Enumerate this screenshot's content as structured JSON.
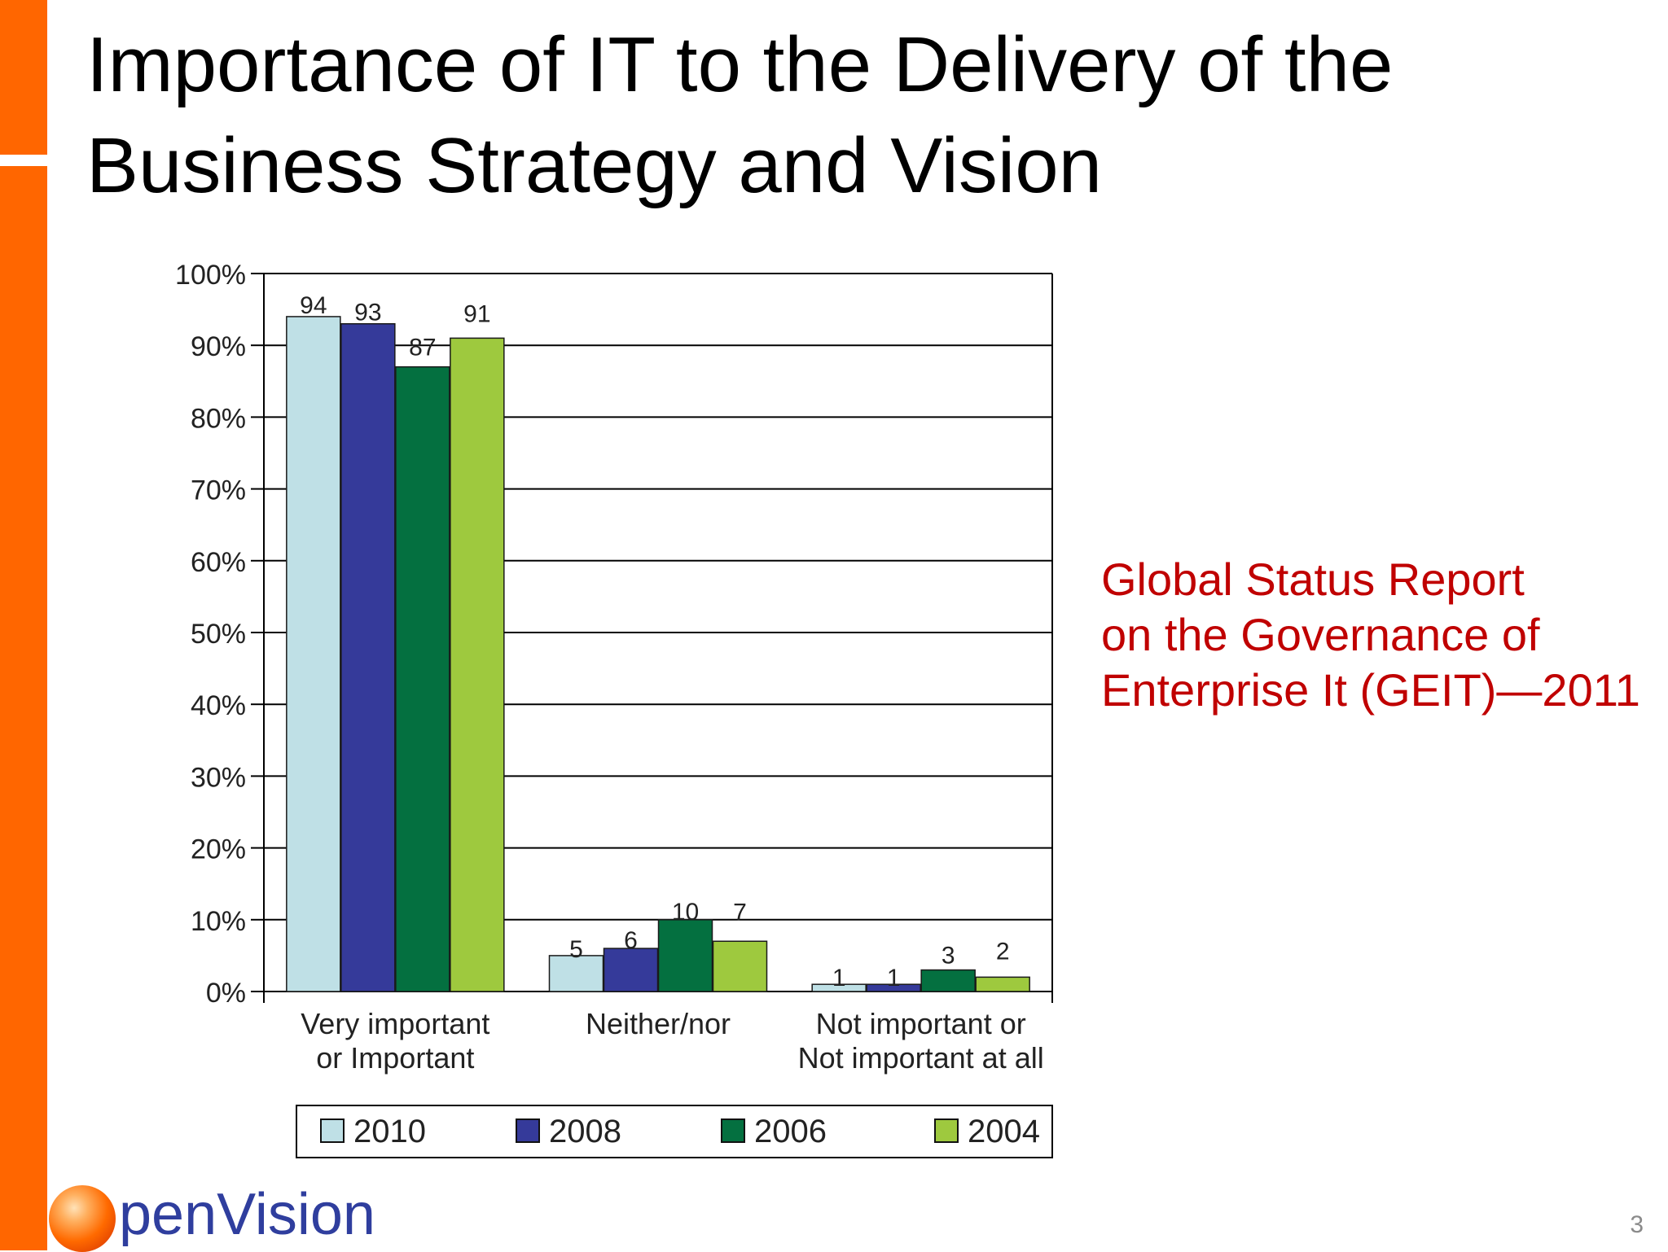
{
  "colors": {
    "accent": "#ff6600",
    "source_text": "#c00000",
    "logo_text": "#2f3e9e"
  },
  "slide": {
    "title_line1": "Importance of IT to the Delivery of the",
    "title_line2": "Business Strategy and Vision",
    "source_line1": "Global Status Report",
    "source_line2": "on the Governance of",
    "source_line3": "Enterprise It (GEIT)—2011",
    "logo_text": "penVision",
    "page_number": "3"
  },
  "chart_data": {
    "type": "bar",
    "categories": [
      [
        "Very important",
        "or Important"
      ],
      [
        "Neither/nor"
      ],
      [
        "Not important or",
        "Not important at all"
      ]
    ],
    "series": [
      {
        "name": "2010",
        "color": "#bfe0e6",
        "values": [
          94,
          5,
          1
        ]
      },
      {
        "name": "2008",
        "color": "#353a9a",
        "values": [
          93,
          6,
          1
        ]
      },
      {
        "name": "2006",
        "color": "#047040",
        "values": [
          87,
          10,
          3
        ]
      },
      {
        "name": "2004",
        "color": "#9ec93e",
        "values": [
          91,
          7,
          2
        ]
      }
    ],
    "y_ticks": [
      "0%",
      "10%",
      "20%",
      "30%",
      "40%",
      "50%",
      "60%",
      "70%",
      "80%",
      "90%",
      "100%"
    ],
    "ylim": [
      0,
      100
    ],
    "grid": true,
    "legend_position": "bottom",
    "data_labels": true
  }
}
